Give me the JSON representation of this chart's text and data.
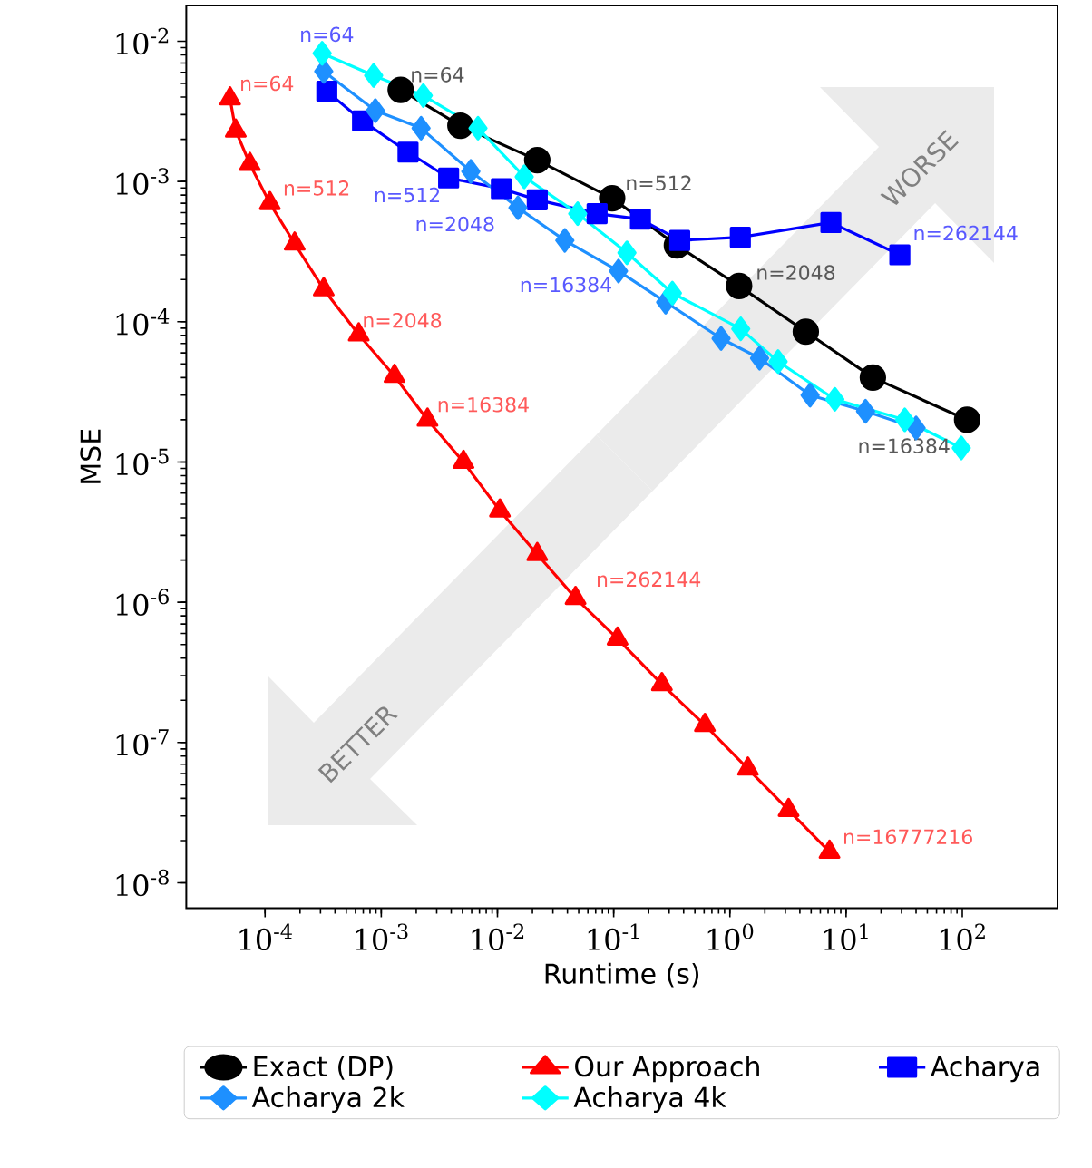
{
  "chart_data": {
    "type": "line",
    "xlabel": "Runtime (s)",
    "ylabel": "MSE",
    "log": "xy",
    "legend": "bottom",
    "xlim": [
      2.1e-05,
      660
    ],
    "ylim": [
      6.6e-09,
      0.018
    ],
    "xticks": [
      {
        "value": 0.0001,
        "label": "10$^{-4}$"
      },
      {
        "value": 0.001,
        "label": "10$^{-3}$"
      },
      {
        "value": 0.01,
        "label": "10$^{-2}$"
      },
      {
        "value": 0.1,
        "label": "10$^{-1}$"
      },
      {
        "value": 1,
        "label": "10$^{0}$"
      },
      {
        "value": 10,
        "label": "10$^{1}$"
      },
      {
        "value": 100,
        "label": "10$^{2}$"
      }
    ],
    "yticks": [
      {
        "value": 1e-08,
        "label": "10$^{-8}$"
      },
      {
        "value": 1e-07,
        "label": "10$^{-7}$"
      },
      {
        "value": 1e-06,
        "label": "10$^{-6}$"
      },
      {
        "value": 1e-05,
        "label": "10$^{-5}$"
      },
      {
        "value": 0.0001,
        "label": "10$^{-4}$"
      },
      {
        "value": 0.001,
        "label": "10$^{-3}$"
      },
      {
        "value": 0.01,
        "label": "10$^{-2}$"
      }
    ],
    "series": [
      {
        "name": "Exact (DP)",
        "color": "#000000",
        "marker": "circle",
        "x": [
          0.00147,
          0.0048,
          0.022,
          0.097,
          0.35,
          1.2,
          4.5,
          17,
          110
        ],
        "values": [
          0.0045,
          0.0025,
          0.00142,
          0.00076,
          0.00035,
          0.00018,
          8.5e-05,
          4e-05,
          2e-05
        ]
      },
      {
        "name": "Our Approach",
        "color": "#ff0000",
        "marker": "triangle",
        "x": [
          5e-05,
          5.6e-05,
          7.4e-05,
          0.00011,
          0.00018,
          0.00032,
          0.00064,
          0.0013,
          0.0025,
          0.0051,
          0.0105,
          0.022,
          0.047,
          0.108,
          0.26,
          0.61,
          1.43,
          3.2,
          7.2
        ],
        "values": [
          0.0039,
          0.0023,
          0.00133,
          0.0007,
          0.00036,
          0.00017,
          8.1e-05,
          4.1e-05,
          2e-05,
          1e-05,
          4.5e-06,
          2.2e-06,
          1.07e-06,
          5.5e-07,
          2.6e-07,
          1.33e-07,
          6.5e-08,
          3.3e-08,
          1.66e-08
        ]
      },
      {
        "name": "Acharya",
        "color": "#0000ff",
        "marker": "square",
        "x": [
          0.00034,
          0.00069,
          0.0017,
          0.0038,
          0.0108,
          0.022,
          0.072,
          0.17,
          0.37,
          1.23,
          7.4,
          29
        ],
        "values": [
          0.0044,
          0.0027,
          0.00162,
          0.00106,
          0.00089,
          0.00074,
          0.00059,
          0.00054,
          0.00038,
          0.0004,
          0.00051,
          0.0003
        ]
      },
      {
        "name": "Acharya 2k",
        "color": "#1e90ff",
        "marker": "diamond",
        "x": [
          0.00032,
          0.00089,
          0.0022,
          0.0059,
          0.015,
          0.038,
          0.11,
          0.28,
          0.84,
          1.8,
          4.9,
          14.7,
          40
        ],
        "values": [
          0.0061,
          0.0032,
          0.0024,
          0.00118,
          0.00065,
          0.00038,
          0.00023,
          0.000138,
          7.6e-05,
          5.5e-05,
          3e-05,
          2.3e-05,
          1.75e-05
        ]
      },
      {
        "name": "Acharya 4k",
        "color": "#00ffff",
        "marker": "diamond",
        "x": [
          0.00031,
          0.00086,
          0.0023,
          0.0068,
          0.017,
          0.049,
          0.13,
          0.32,
          1.24,
          2.6,
          8.0,
          32,
          98
        ],
        "values": [
          0.0082,
          0.0057,
          0.0041,
          0.0024,
          0.00108,
          0.00059,
          0.00031,
          0.00016,
          8.9e-05,
          5.2e-05,
          2.8e-05,
          2e-05,
          1.26e-05
        ]
      }
    ],
    "annotations": [
      {
        "text": "n=64",
        "x": 0.00147,
        "y": 0.0045
      },
      {
        "text": "n=512",
        "x": 0.097,
        "y": 0.00076
      },
      {
        "text": "n=2048",
        "x": 1.2,
        "y": 0.00018
      },
      {
        "text": "n=16384",
        "x": 110,
        "y": 2e-05
      },
      {
        "text": "n=64",
        "x": 5e-05,
        "y": 0.0039
      },
      {
        "text": "n=512",
        "x": 0.00011,
        "y": 0.0007
      },
      {
        "text": "n=2048",
        "x": 0.00032,
        "y": 0.00017
      },
      {
        "text": "n=16384",
        "x": 0.0025,
        "y": 2e-05
      },
      {
        "text": "n=262144",
        "x": 0.047,
        "y": 1.07e-06
      },
      {
        "text": "n=16777216",
        "x": 7.2,
        "y": 1.66e-08
      },
      {
        "text": "n=64",
        "x": 0.00034,
        "y": 0.0044
      },
      {
        "text": "n=512",
        "x": 0.0038,
        "y": 0.00106
      },
      {
        "text": "n=2048",
        "x": 0.022,
        "y": 0.00074
      },
      {
        "text": "n=262144",
        "x": 29,
        "y": 0.0003
      },
      "WORSE",
      "BETTER",
      "n=16384"
    ]
  }
}
